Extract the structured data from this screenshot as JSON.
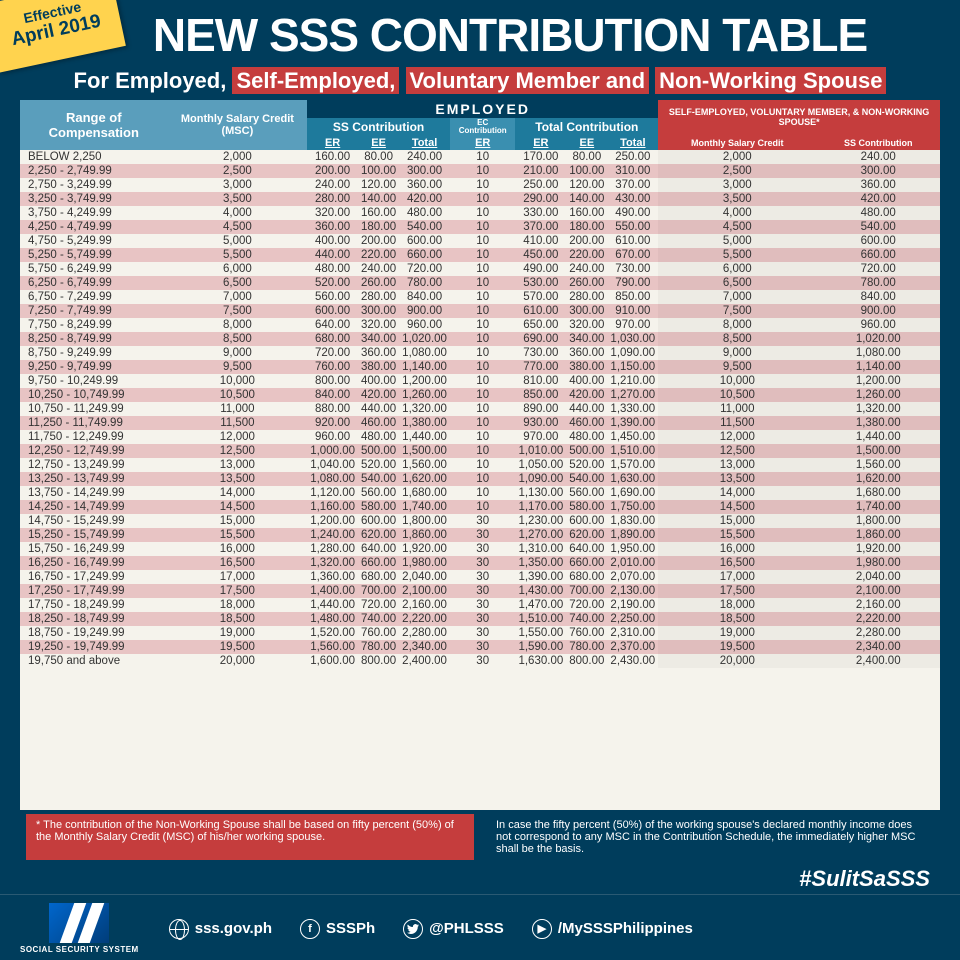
{
  "badge": {
    "line1": "Effective",
    "line2": "April 2019"
  },
  "title": "NEW SSS CONTRIBUTION TABLE",
  "subtitle": {
    "prefix": "For Employed, ",
    "h1": "Self-Employed,",
    "mid1": " ",
    "h2": "Voluntary Member and",
    "mid2": " ",
    "h3": "Non-Working Spouse"
  },
  "headers": {
    "roc": "Range of Compensation",
    "msc": "Monthly Salary Credit (MSC)",
    "employed": "EMPLOYED",
    "se_title": "SELF-EMPLOYED, VOLUNTARY MEMBER, & NON-WORKING SPOUSE*",
    "ss_contribution": "SS Contribution",
    "ec_contribution": "EC Contribution",
    "total_contribution": "Total Contribution",
    "er": "ER",
    "ee": "EE",
    "total": "Total",
    "se_msc": "Monthly Salary Credit",
    "se_ss": "SS Contribution"
  },
  "rows": [
    {
      "roc": "BELOW 2,250",
      "msc": "2,000",
      "ss_er": "160.00",
      "ss_ee": "80.00",
      "ss_t": "240.00",
      "ec": "10",
      "tc_er": "170.00",
      "tc_ee": "80.00",
      "tc_t": "250.00",
      "se_msc": "2,000",
      "se_ss": "240.00"
    },
    {
      "roc": "2,250  -  2,749.99",
      "msc": "2,500",
      "ss_er": "200.00",
      "ss_ee": "100.00",
      "ss_t": "300.00",
      "ec": "10",
      "tc_er": "210.00",
      "tc_ee": "100.00",
      "tc_t": "310.00",
      "se_msc": "2,500",
      "se_ss": "300.00"
    },
    {
      "roc": "2,750  -  3,249.99",
      "msc": "3,000",
      "ss_er": "240.00",
      "ss_ee": "120.00",
      "ss_t": "360.00",
      "ec": "10",
      "tc_er": "250.00",
      "tc_ee": "120.00",
      "tc_t": "370.00",
      "se_msc": "3,000",
      "se_ss": "360.00"
    },
    {
      "roc": "3,250  -  3,749.99",
      "msc": "3,500",
      "ss_er": "280.00",
      "ss_ee": "140.00",
      "ss_t": "420.00",
      "ec": "10",
      "tc_er": "290.00",
      "tc_ee": "140.00",
      "tc_t": "430.00",
      "se_msc": "3,500",
      "se_ss": "420.00"
    },
    {
      "roc": "3,750  -  4,249.99",
      "msc": "4,000",
      "ss_er": "320.00",
      "ss_ee": "160.00",
      "ss_t": "480.00",
      "ec": "10",
      "tc_er": "330.00",
      "tc_ee": "160.00",
      "tc_t": "490.00",
      "se_msc": "4,000",
      "se_ss": "480.00"
    },
    {
      "roc": "4,250  -  4,749.99",
      "msc": "4,500",
      "ss_er": "360.00",
      "ss_ee": "180.00",
      "ss_t": "540.00",
      "ec": "10",
      "tc_er": "370.00",
      "tc_ee": "180.00",
      "tc_t": "550.00",
      "se_msc": "4,500",
      "se_ss": "540.00"
    },
    {
      "roc": "4,750  -  5,249.99",
      "msc": "5,000",
      "ss_er": "400.00",
      "ss_ee": "200.00",
      "ss_t": "600.00",
      "ec": "10",
      "tc_er": "410.00",
      "tc_ee": "200.00",
      "tc_t": "610.00",
      "se_msc": "5,000",
      "se_ss": "600.00"
    },
    {
      "roc": "5,250  -  5,749.99",
      "msc": "5,500",
      "ss_er": "440.00",
      "ss_ee": "220.00",
      "ss_t": "660.00",
      "ec": "10",
      "tc_er": "450.00",
      "tc_ee": "220.00",
      "tc_t": "670.00",
      "se_msc": "5,500",
      "se_ss": "660.00"
    },
    {
      "roc": "5,750  -  6,249.99",
      "msc": "6,000",
      "ss_er": "480.00",
      "ss_ee": "240.00",
      "ss_t": "720.00",
      "ec": "10",
      "tc_er": "490.00",
      "tc_ee": "240.00",
      "tc_t": "730.00",
      "se_msc": "6,000",
      "se_ss": "720.00"
    },
    {
      "roc": "6,250  -  6,749.99",
      "msc": "6,500",
      "ss_er": "520.00",
      "ss_ee": "260.00",
      "ss_t": "780.00",
      "ec": "10",
      "tc_er": "530.00",
      "tc_ee": "260.00",
      "tc_t": "790.00",
      "se_msc": "6,500",
      "se_ss": "780.00"
    },
    {
      "roc": "6,750  -  7,249.99",
      "msc": "7,000",
      "ss_er": "560.00",
      "ss_ee": "280.00",
      "ss_t": "840.00",
      "ec": "10",
      "tc_er": "570.00",
      "tc_ee": "280.00",
      "tc_t": "850.00",
      "se_msc": "7,000",
      "se_ss": "840.00"
    },
    {
      "roc": "7,250  -  7,749.99",
      "msc": "7,500",
      "ss_er": "600.00",
      "ss_ee": "300.00",
      "ss_t": "900.00",
      "ec": "10",
      "tc_er": "610.00",
      "tc_ee": "300.00",
      "tc_t": "910.00",
      "se_msc": "7,500",
      "se_ss": "900.00"
    },
    {
      "roc": "7,750  -  8,249.99",
      "msc": "8,000",
      "ss_er": "640.00",
      "ss_ee": "320.00",
      "ss_t": "960.00",
      "ec": "10",
      "tc_er": "650.00",
      "tc_ee": "320.00",
      "tc_t": "970.00",
      "se_msc": "8,000",
      "se_ss": "960.00"
    },
    {
      "roc": "8,250  -  8,749.99",
      "msc": "8,500",
      "ss_er": "680.00",
      "ss_ee": "340.00",
      "ss_t": "1,020.00",
      "ec": "10",
      "tc_er": "690.00",
      "tc_ee": "340.00",
      "tc_t": "1,030.00",
      "se_msc": "8,500",
      "se_ss": "1,020.00"
    },
    {
      "roc": "8,750  -  9,249.99",
      "msc": "9,000",
      "ss_er": "720.00",
      "ss_ee": "360.00",
      "ss_t": "1,080.00",
      "ec": "10",
      "tc_er": "730.00",
      "tc_ee": "360.00",
      "tc_t": "1,090.00",
      "se_msc": "9,000",
      "se_ss": "1,080.00"
    },
    {
      "roc": "9,250  -  9,749.99",
      "msc": "9,500",
      "ss_er": "760.00",
      "ss_ee": "380.00",
      "ss_t": "1,140.00",
      "ec": "10",
      "tc_er": "770.00",
      "tc_ee": "380.00",
      "tc_t": "1,150.00",
      "se_msc": "9,500",
      "se_ss": "1,140.00"
    },
    {
      "roc": "9,750  - 10,249.99",
      "msc": "10,000",
      "ss_er": "800.00",
      "ss_ee": "400.00",
      "ss_t": "1,200.00",
      "ec": "10",
      "tc_er": "810.00",
      "tc_ee": "400.00",
      "tc_t": "1,210.00",
      "se_msc": "10,000",
      "se_ss": "1,200.00"
    },
    {
      "roc": "10,250 - 10,749.99",
      "msc": "10,500",
      "ss_er": "840.00",
      "ss_ee": "420.00",
      "ss_t": "1,260.00",
      "ec": "10",
      "tc_er": "850.00",
      "tc_ee": "420.00",
      "tc_t": "1,270.00",
      "se_msc": "10,500",
      "se_ss": "1,260.00"
    },
    {
      "roc": "10,750 - 11,249.99",
      "msc": "11,000",
      "ss_er": "880.00",
      "ss_ee": "440.00",
      "ss_t": "1,320.00",
      "ec": "10",
      "tc_er": "890.00",
      "tc_ee": "440.00",
      "tc_t": "1,330.00",
      "se_msc": "11,000",
      "se_ss": "1,320.00"
    },
    {
      "roc": "11,250 - 11,749.99",
      "msc": "11,500",
      "ss_er": "920.00",
      "ss_ee": "460.00",
      "ss_t": "1,380.00",
      "ec": "10",
      "tc_er": "930.00",
      "tc_ee": "460.00",
      "tc_t": "1,390.00",
      "se_msc": "11,500",
      "se_ss": "1,380.00"
    },
    {
      "roc": "11,750 - 12,249.99",
      "msc": "12,000",
      "ss_er": "960.00",
      "ss_ee": "480.00",
      "ss_t": "1,440.00",
      "ec": "10",
      "tc_er": "970.00",
      "tc_ee": "480.00",
      "tc_t": "1,450.00",
      "se_msc": "12,000",
      "se_ss": "1,440.00"
    },
    {
      "roc": "12,250 - 12,749.99",
      "msc": "12,500",
      "ss_er": "1,000.00",
      "ss_ee": "500.00",
      "ss_t": "1,500.00",
      "ec": "10",
      "tc_er": "1,010.00",
      "tc_ee": "500.00",
      "tc_t": "1,510.00",
      "se_msc": "12,500",
      "se_ss": "1,500.00"
    },
    {
      "roc": "12,750 - 13,249.99",
      "msc": "13,000",
      "ss_er": "1,040.00",
      "ss_ee": "520.00",
      "ss_t": "1,560.00",
      "ec": "10",
      "tc_er": "1,050.00",
      "tc_ee": "520.00",
      "tc_t": "1,570.00",
      "se_msc": "13,000",
      "se_ss": "1,560.00"
    },
    {
      "roc": "13,250 - 13,749.99",
      "msc": "13,500",
      "ss_er": "1,080.00",
      "ss_ee": "540.00",
      "ss_t": "1,620.00",
      "ec": "10",
      "tc_er": "1,090.00",
      "tc_ee": "540.00",
      "tc_t": "1,630.00",
      "se_msc": "13,500",
      "se_ss": "1,620.00"
    },
    {
      "roc": "13,750 - 14,249.99",
      "msc": "14,000",
      "ss_er": "1,120.00",
      "ss_ee": "560.00",
      "ss_t": "1,680.00",
      "ec": "10",
      "tc_er": "1,130.00",
      "tc_ee": "560.00",
      "tc_t": "1,690.00",
      "se_msc": "14,000",
      "se_ss": "1,680.00"
    },
    {
      "roc": "14,250 - 14,749.99",
      "msc": "14,500",
      "ss_er": "1,160.00",
      "ss_ee": "580.00",
      "ss_t": "1,740.00",
      "ec": "10",
      "tc_er": "1,170.00",
      "tc_ee": "580.00",
      "tc_t": "1,750.00",
      "se_msc": "14,500",
      "se_ss": "1,740.00"
    },
    {
      "roc": "14,750 - 15,249.99",
      "msc": "15,000",
      "ss_er": "1,200.00",
      "ss_ee": "600.00",
      "ss_t": "1,800.00",
      "ec": "30",
      "tc_er": "1,230.00",
      "tc_ee": "600.00",
      "tc_t": "1,830.00",
      "se_msc": "15,000",
      "se_ss": "1,800.00"
    },
    {
      "roc": "15,250 - 15,749.99",
      "msc": "15,500",
      "ss_er": "1,240.00",
      "ss_ee": "620.00",
      "ss_t": "1,860.00",
      "ec": "30",
      "tc_er": "1,270.00",
      "tc_ee": "620.00",
      "tc_t": "1,890.00",
      "se_msc": "15,500",
      "se_ss": "1,860.00"
    },
    {
      "roc": "15,750 - 16,249.99",
      "msc": "16,000",
      "ss_er": "1,280.00",
      "ss_ee": "640.00",
      "ss_t": "1,920.00",
      "ec": "30",
      "tc_er": "1,310.00",
      "tc_ee": "640.00",
      "tc_t": "1,950.00",
      "se_msc": "16,000",
      "se_ss": "1,920.00"
    },
    {
      "roc": "16,250 - 16,749.99",
      "msc": "16,500",
      "ss_er": "1,320.00",
      "ss_ee": "660.00",
      "ss_t": "1,980.00",
      "ec": "30",
      "tc_er": "1,350.00",
      "tc_ee": "660.00",
      "tc_t": "2,010.00",
      "se_msc": "16,500",
      "se_ss": "1,980.00"
    },
    {
      "roc": "16,750 - 17,249.99",
      "msc": "17,000",
      "ss_er": "1,360.00",
      "ss_ee": "680.00",
      "ss_t": "2,040.00",
      "ec": "30",
      "tc_er": "1,390.00",
      "tc_ee": "680.00",
      "tc_t": "2,070.00",
      "se_msc": "17,000",
      "se_ss": "2,040.00"
    },
    {
      "roc": "17,250 - 17,749.99",
      "msc": "17,500",
      "ss_er": "1,400.00",
      "ss_ee": "700.00",
      "ss_t": "2,100.00",
      "ec": "30",
      "tc_er": "1,430.00",
      "tc_ee": "700.00",
      "tc_t": "2,130.00",
      "se_msc": "17,500",
      "se_ss": "2,100.00"
    },
    {
      "roc": "17,750 - 18,249.99",
      "msc": "18,000",
      "ss_er": "1,440.00",
      "ss_ee": "720.00",
      "ss_t": "2,160.00",
      "ec": "30",
      "tc_er": "1,470.00",
      "tc_ee": "720.00",
      "tc_t": "2,190.00",
      "se_msc": "18,000",
      "se_ss": "2,160.00"
    },
    {
      "roc": "18,250 - 18,749.99",
      "msc": "18,500",
      "ss_er": "1,480.00",
      "ss_ee": "740.00",
      "ss_t": "2,220.00",
      "ec": "30",
      "tc_er": "1,510.00",
      "tc_ee": "740.00",
      "tc_t": "2,250.00",
      "se_msc": "18,500",
      "se_ss": "2,220.00"
    },
    {
      "roc": "18,750 - 19,249.99",
      "msc": "19,000",
      "ss_er": "1,520.00",
      "ss_ee": "760.00",
      "ss_t": "2,280.00",
      "ec": "30",
      "tc_er": "1,550.00",
      "tc_ee": "760.00",
      "tc_t": "2,310.00",
      "se_msc": "19,000",
      "se_ss": "2,280.00"
    },
    {
      "roc": "19,250 - 19,749.99",
      "msc": "19,500",
      "ss_er": "1,560.00",
      "ss_ee": "780.00",
      "ss_t": "2,340.00",
      "ec": "30",
      "tc_er": "1,590.00",
      "tc_ee": "780.00",
      "tc_t": "2,370.00",
      "se_msc": "19,500",
      "se_ss": "2,340.00"
    },
    {
      "roc": "19,750 and above",
      "msc": "20,000",
      "ss_er": "1,600.00",
      "ss_ee": "800.00",
      "ss_t": "2,400.00",
      "ec": "30",
      "tc_er": "1,630.00",
      "tc_ee": "800.00",
      "tc_t": "2,430.00",
      "se_msc": "20,000",
      "se_ss": "2,400.00"
    }
  ],
  "footnote": {
    "note1": "* The contribution of the Non-Working Spouse shall be based on fifty percent (50%) of the Monthly Salary Credit (MSC) of his/her working spouse.",
    "note2": "In case the fifty percent (50%) of the working spouse's declared monthly income does not correspond to any MSC in the Contribution Schedule, the immediately higher MSC shall be the basis."
  },
  "hashtag": "#SulitSaSSS",
  "footer": {
    "org": "SOCIAL SECURITY SYSTEM",
    "website": "sss.gov.ph",
    "facebook": "SSSPh",
    "twitter": "@PHLSSS",
    "youtube": "/MySSSPhilippines"
  },
  "colors": {
    "primary_dark": "#003d5c",
    "header_light": "#5a9ebc",
    "header_mid": "#1e7a9c",
    "red": "#c53d3d",
    "yellow": "#ffd34e",
    "row_odd": "#f5f3ec",
    "row_even": "#e8c4c4"
  }
}
